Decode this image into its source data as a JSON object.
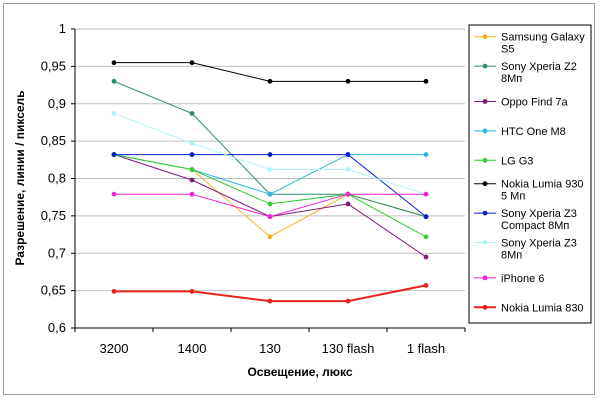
{
  "chart_data": {
    "type": "line",
    "categories": [
      "3200",
      "1400",
      "130",
      "130 flash",
      "1 flash"
    ],
    "xlabel": "Освещение, люкс",
    "ylabel": "Разрешение, линии / пиксель",
    "ylim": [
      0.6,
      1.0
    ],
    "yticks": [
      "0,6",
      "0,65",
      "0,7",
      "0,75",
      "0,8",
      "0,85",
      "0,9",
      "0,95",
      "1"
    ],
    "grid": "horizontal",
    "legend_position": "right",
    "series": [
      {
        "name": "Samsung Galaxy S5",
        "label_lines": [
          "Samsung Galaxy",
          "S5"
        ],
        "color": "#f7b21c",
        "values": [
          0.832,
          0.812,
          0.722,
          0.779,
          0.749
        ]
      },
      {
        "name": "Sony Xperia Z2 8Мп",
        "label_lines": [
          "Sony Xperia Z2",
          "8Мп"
        ],
        "color": "#2e8b6e",
        "values": [
          0.93,
          0.887,
          0.779,
          0.779,
          0.749
        ]
      },
      {
        "name": "Oppo Find 7a",
        "label_lines": [
          "Oppo Find 7a"
        ],
        "color": "#7f1c7d",
        "values": [
          0.832,
          0.798,
          0.749,
          0.766,
          0.695
        ]
      },
      {
        "name": "HTC One M8",
        "label_lines": [
          "HTC One M8"
        ],
        "color": "#2cb5e8",
        "values": [
          0.832,
          0.812,
          0.779,
          0.832,
          0.832
        ]
      },
      {
        "name": "LG G3",
        "label_lines": [
          "LG G3"
        ],
        "color": "#33cc33",
        "values": [
          0.832,
          0.812,
          0.766,
          0.779,
          0.722
        ]
      },
      {
        "name": "Nokia Lumia 930 5 Мп",
        "label_lines": [
          "Nokia Lumia 930",
          "5 Мп"
        ],
        "color": "#000000",
        "values": [
          0.955,
          0.955,
          0.93,
          0.93,
          0.93
        ]
      },
      {
        "name": "Sony Xperia Z3 Compact 8Мп",
        "label_lines": [
          "Sony Xperia Z3",
          "Compact 8Мп"
        ],
        "color": "#0a1fd0",
        "values": [
          0.832,
          0.832,
          0.832,
          0.832,
          0.749
        ]
      },
      {
        "name": "Sony Xperia Z3 8Мп",
        "label_lines": [
          "Sony Xperia Z3",
          "8Мп"
        ],
        "color": "#aef3fb",
        "values": [
          0.887,
          0.847,
          0.812,
          0.812,
          0.779
        ]
      },
      {
        "name": "iPhone 6",
        "label_lines": [
          "iPhone 6"
        ],
        "color": "#ee22dd",
        "values": [
          0.779,
          0.779,
          0.749,
          0.779,
          0.779
        ]
      },
      {
        "name": "Nokia Lumia 830",
        "label_lines": [
          "Nokia Lumia 830"
        ],
        "color": "#e8231c",
        "values": [
          0.649,
          0.649,
          0.636,
          0.636,
          0.657
        ]
      }
    ]
  }
}
